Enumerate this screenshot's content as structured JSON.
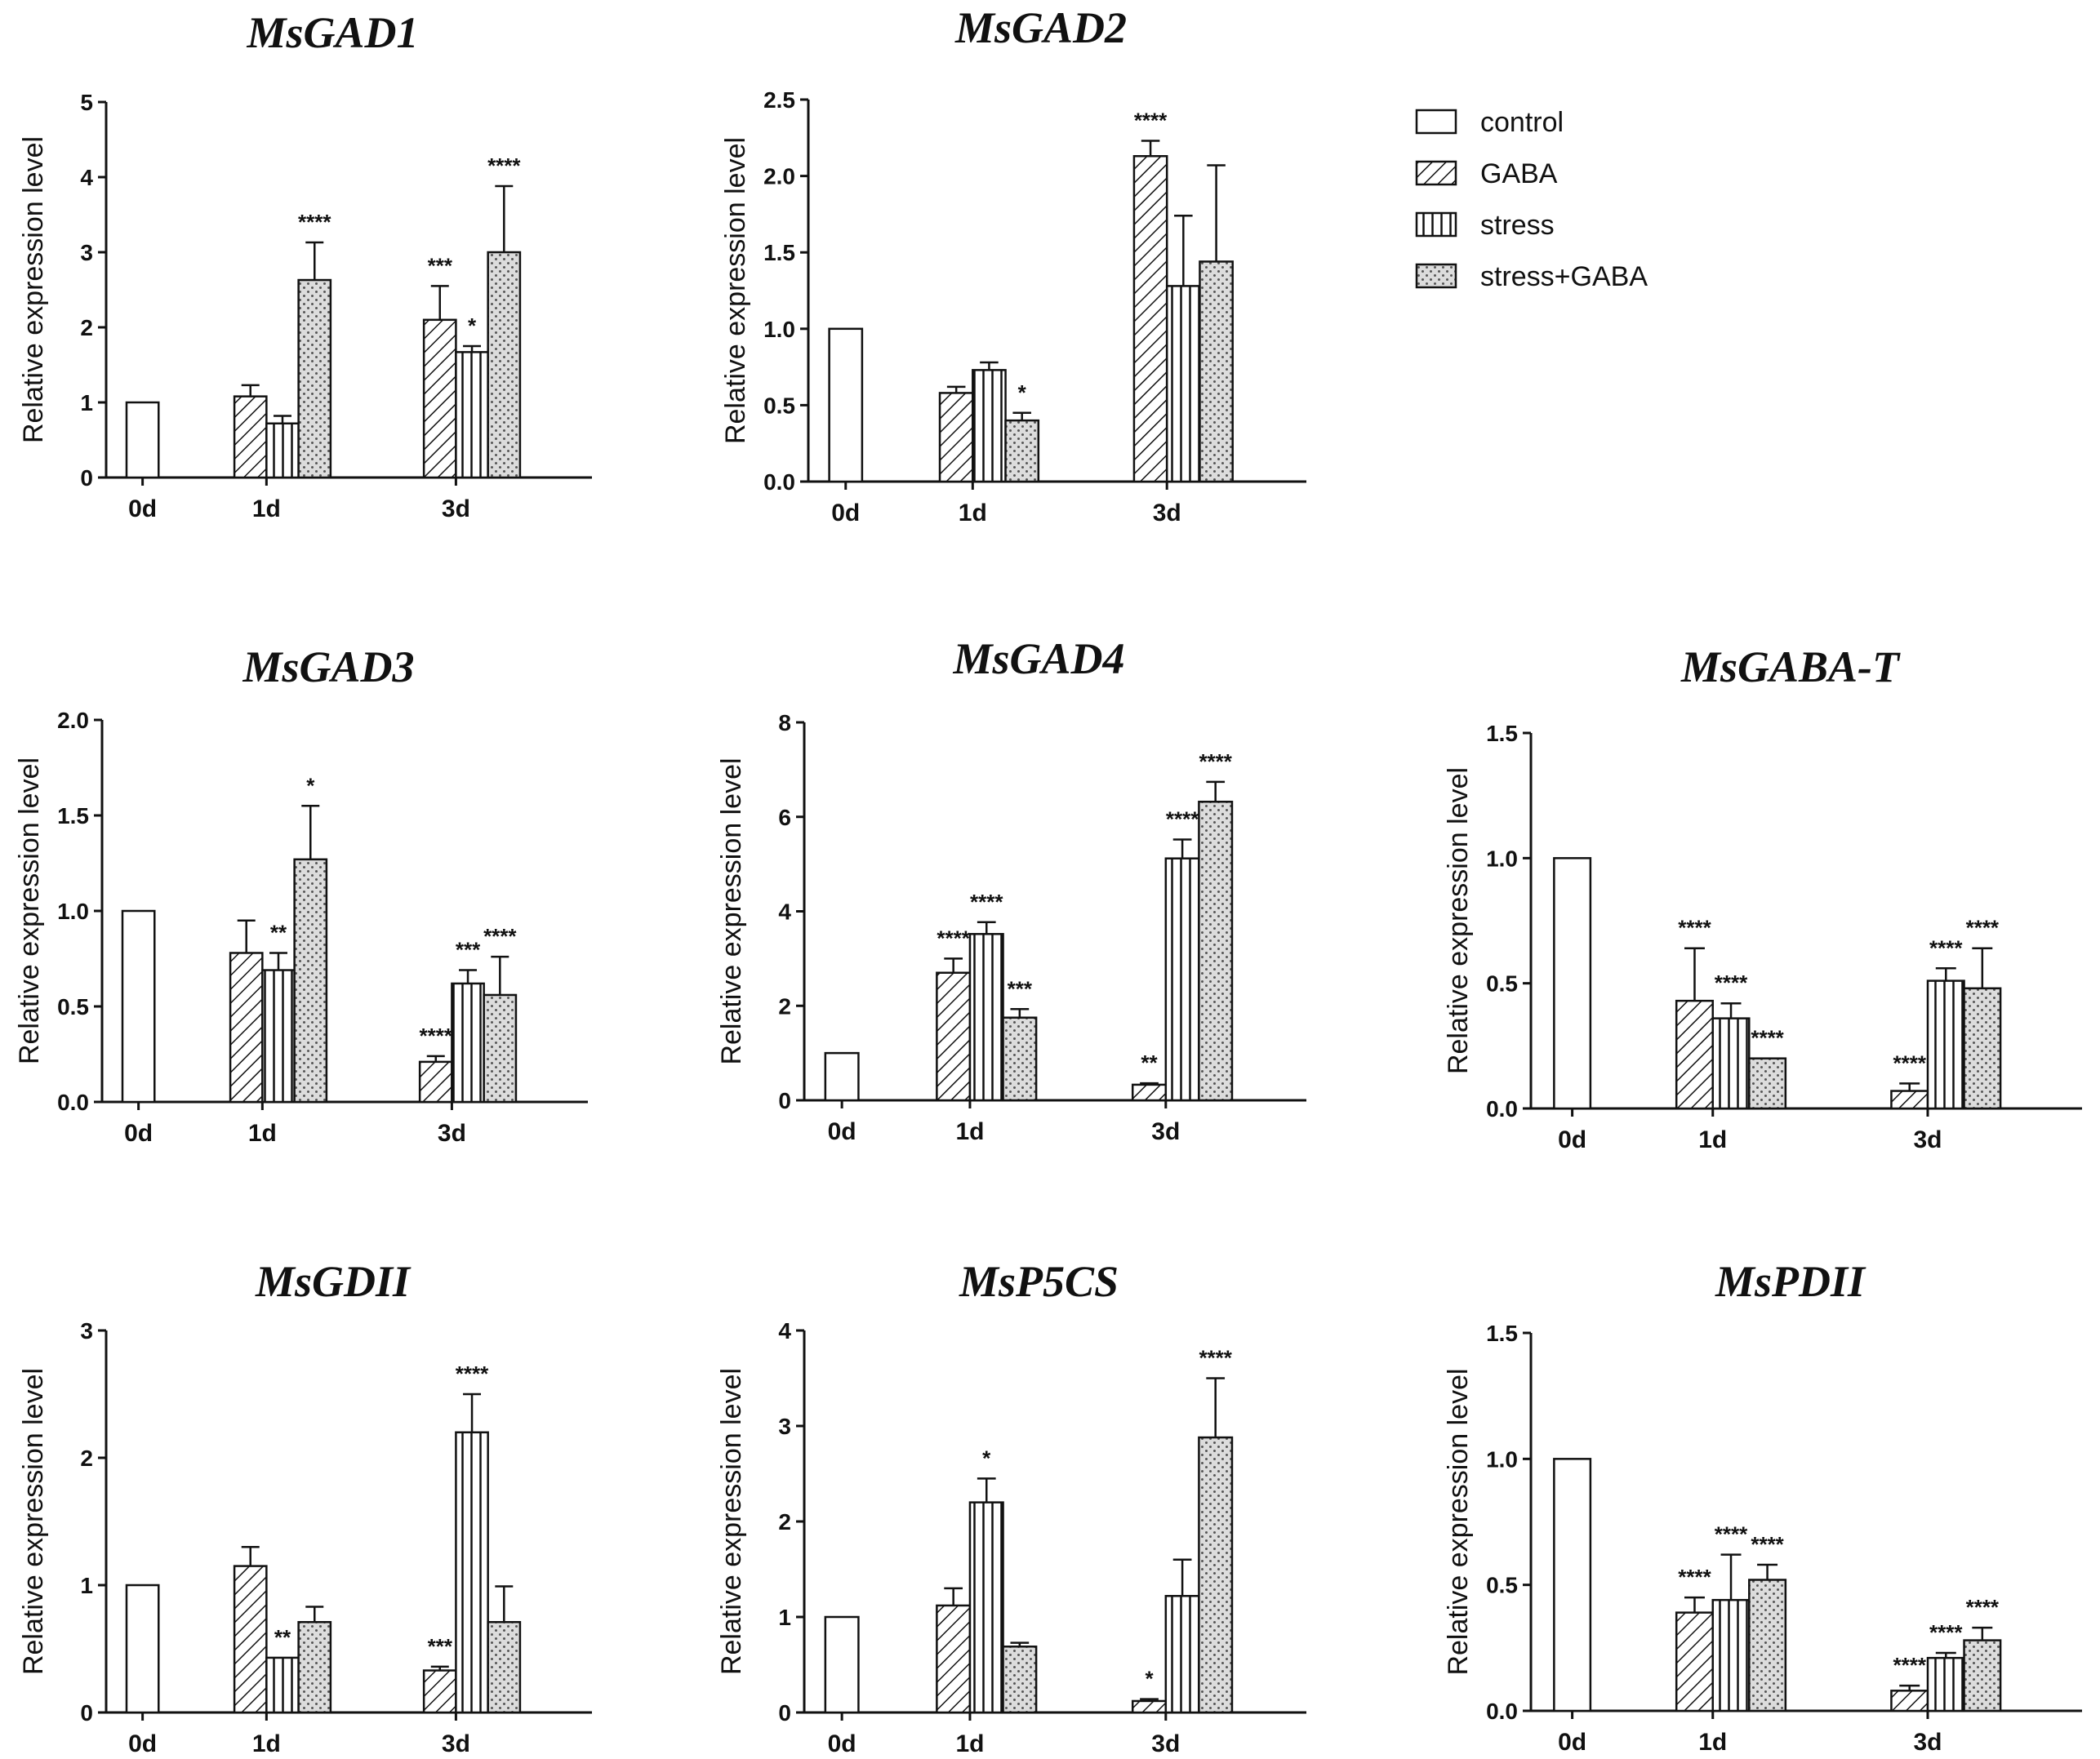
{
  "legend": {
    "items": [
      {
        "label": "control",
        "pattern": "control"
      },
      {
        "label": "GABA",
        "pattern": "gaba"
      },
      {
        "label": "stress",
        "pattern": "stress"
      },
      {
        "label": "stress+GABA",
        "pattern": "stressgaba"
      }
    ]
  },
  "chart_data": [
    {
      "type": "bar",
      "title": "MsGAD1",
      "ylabel": "Relative expression level",
      "ylim": [
        0,
        5
      ],
      "yticks": [
        "0",
        "1",
        "2",
        "3",
        "4",
        "5"
      ],
      "categories": [
        "0d",
        "1d",
        "3d"
      ],
      "series": [
        {
          "name": "control",
          "values": [
            1.0,
            null,
            null
          ],
          "errors": [
            0,
            null,
            null
          ],
          "sig": [
            "",
            "",
            ""
          ]
        },
        {
          "name": "GABA",
          "values": [
            null,
            1.08,
            2.1
          ],
          "errors": [
            null,
            0.15,
            0.45
          ],
          "sig": [
            "",
            "",
            "***"
          ]
        },
        {
          "name": "stress",
          "values": [
            null,
            0.72,
            1.67
          ],
          "errors": [
            null,
            0.1,
            0.08
          ],
          "sig": [
            "",
            "",
            "*"
          ]
        },
        {
          "name": "stress+GABA",
          "values": [
            null,
            2.63,
            3.0
          ],
          "errors": [
            null,
            0.5,
            0.88
          ],
          "sig": [
            "",
            "****",
            "****"
          ]
        }
      ]
    },
    {
      "type": "bar",
      "title": "MsGAD2",
      "ylabel": "Relative expression level",
      "ylim": [
        0,
        2.5
      ],
      "yticks": [
        "0.0",
        "0.5",
        "1.0",
        "1.5",
        "2.0",
        "2.5"
      ],
      "categories": [
        "0d",
        "1d",
        "3d"
      ],
      "series": [
        {
          "name": "control",
          "values": [
            1.0,
            null,
            null
          ],
          "errors": [
            0,
            null,
            null
          ],
          "sig": [
            "",
            "",
            ""
          ]
        },
        {
          "name": "GABA",
          "values": [
            null,
            0.58,
            2.13
          ],
          "errors": [
            null,
            0.04,
            0.1
          ],
          "sig": [
            "",
            "",
            "****"
          ]
        },
        {
          "name": "stress",
          "values": [
            null,
            0.73,
            1.28
          ],
          "errors": [
            null,
            0.05,
            0.46
          ],
          "sig": [
            "",
            "",
            ""
          ]
        },
        {
          "name": "stress+GABA",
          "values": [
            null,
            0.4,
            1.44
          ],
          "errors": [
            null,
            0.05,
            0.63
          ],
          "sig": [
            "",
            "*",
            ""
          ]
        }
      ]
    },
    {
      "type": "bar",
      "title": "MsGAD3",
      "ylabel": "Relative expression level",
      "ylim": [
        0,
        2.0
      ],
      "yticks": [
        "0.0",
        "0.5",
        "1.0",
        "1.5",
        "2.0"
      ],
      "categories": [
        "0d",
        "1d",
        "3d"
      ],
      "series": [
        {
          "name": "control",
          "values": [
            1.0,
            null,
            null
          ],
          "errors": [
            0,
            null,
            null
          ],
          "sig": [
            "",
            "",
            ""
          ]
        },
        {
          "name": "GABA",
          "values": [
            null,
            0.78,
            0.21
          ],
          "errors": [
            null,
            0.17,
            0.03
          ],
          "sig": [
            "",
            "",
            "****"
          ]
        },
        {
          "name": "stress",
          "values": [
            null,
            0.69,
            0.62
          ],
          "errors": [
            null,
            0.09,
            0.07
          ],
          "sig": [
            "",
            "**",
            "***"
          ]
        },
        {
          "name": "stress+GABA",
          "values": [
            null,
            1.27,
            0.56
          ],
          "errors": [
            null,
            0.28,
            0.2
          ],
          "sig": [
            "",
            "*",
            "****"
          ]
        }
      ]
    },
    {
      "type": "bar",
      "title": "MsGAD4",
      "ylabel": "Relative expression level",
      "ylim": [
        0,
        8
      ],
      "yticks": [
        "0",
        "2",
        "4",
        "6",
        "8"
      ],
      "categories": [
        "0d",
        "1d",
        "3d"
      ],
      "series": [
        {
          "name": "control",
          "values": [
            1.0,
            null,
            null
          ],
          "errors": [
            0,
            null,
            null
          ],
          "sig": [
            "",
            "",
            ""
          ]
        },
        {
          "name": "GABA",
          "values": [
            null,
            2.7,
            0.33
          ],
          "errors": [
            null,
            0.3,
            0.03
          ],
          "sig": [
            "",
            "****",
            "**"
          ]
        },
        {
          "name": "stress",
          "values": [
            null,
            3.52,
            5.12
          ],
          "errors": [
            null,
            0.25,
            0.4
          ],
          "sig": [
            "",
            "****",
            "****"
          ]
        },
        {
          "name": "stress+GABA",
          "values": [
            null,
            1.75,
            6.32
          ],
          "errors": [
            null,
            0.18,
            0.42
          ],
          "sig": [
            "",
            "***",
            "****"
          ]
        }
      ]
    },
    {
      "type": "bar",
      "title": "MsGABA-T",
      "ylabel": "Relative expression level",
      "ylim": [
        0,
        1.5
      ],
      "yticks": [
        "0.0",
        "0.5",
        "1.0",
        "1.5"
      ],
      "categories": [
        "0d",
        "1d",
        "3d"
      ],
      "series": [
        {
          "name": "control",
          "values": [
            1.0,
            null,
            null
          ],
          "errors": [
            0,
            null,
            null
          ],
          "sig": [
            "",
            "",
            ""
          ]
        },
        {
          "name": "GABA",
          "values": [
            null,
            0.43,
            0.07
          ],
          "errors": [
            null,
            0.21,
            0.03
          ],
          "sig": [
            "",
            "****",
            "****"
          ]
        },
        {
          "name": "stress",
          "values": [
            null,
            0.36,
            0.51
          ],
          "errors": [
            null,
            0.06,
            0.05
          ],
          "sig": [
            "",
            "****",
            "****"
          ]
        },
        {
          "name": "stress+GABA",
          "values": [
            null,
            0.2,
            0.48
          ],
          "errors": [
            null,
            0,
            0.16
          ],
          "sig": [
            "",
            "****",
            "****"
          ]
        }
      ]
    },
    {
      "type": "bar",
      "title": "MsGDII",
      "ylabel": "Relative expression level",
      "ylim": [
        0,
        3
      ],
      "yticks": [
        "0",
        "1",
        "2",
        "3"
      ],
      "categories": [
        "0d",
        "1d",
        "3d"
      ],
      "series": [
        {
          "name": "control",
          "values": [
            1.0,
            null,
            null
          ],
          "errors": [
            0,
            null,
            null
          ],
          "sig": [
            "",
            "",
            ""
          ]
        },
        {
          "name": "GABA",
          "values": [
            null,
            1.15,
            0.33
          ],
          "errors": [
            null,
            0.15,
            0.03
          ],
          "sig": [
            "",
            "",
            "***"
          ]
        },
        {
          "name": "stress",
          "values": [
            null,
            0.43,
            2.2
          ],
          "errors": [
            null,
            0,
            0.3
          ],
          "sig": [
            "",
            "**",
            "****"
          ]
        },
        {
          "name": "stress+GABA",
          "values": [
            null,
            0.71,
            0.71
          ],
          "errors": [
            null,
            0.12,
            0.28
          ],
          "sig": [
            "",
            "",
            ""
          ]
        }
      ]
    },
    {
      "type": "bar",
      "title": "MsP5CS",
      "ylabel": "Relative expression level",
      "ylim": [
        0,
        4
      ],
      "yticks": [
        "0",
        "1",
        "2",
        "3",
        "4"
      ],
      "categories": [
        "0d",
        "1d",
        "3d"
      ],
      "series": [
        {
          "name": "control",
          "values": [
            1.0,
            null,
            null
          ],
          "errors": [
            0,
            null,
            null
          ],
          "sig": [
            "",
            "",
            ""
          ]
        },
        {
          "name": "GABA",
          "values": [
            null,
            1.12,
            0.12
          ],
          "errors": [
            null,
            0.18,
            0.02
          ],
          "sig": [
            "",
            "",
            "*"
          ]
        },
        {
          "name": "stress",
          "values": [
            null,
            2.2,
            1.22
          ],
          "errors": [
            null,
            0.25,
            0.38
          ],
          "sig": [
            "",
            "*",
            ""
          ]
        },
        {
          "name": "stress+GABA",
          "values": [
            null,
            0.69,
            2.88
          ],
          "errors": [
            null,
            0.04,
            0.62
          ],
          "sig": [
            "",
            "",
            "****"
          ]
        }
      ]
    },
    {
      "type": "bar",
      "title": "MsPDII",
      "ylabel": "Relative expression level",
      "ylim": [
        0,
        1.5
      ],
      "yticks": [
        "0.0",
        "0.5",
        "1.0",
        "1.5"
      ],
      "categories": [
        "0d",
        "1d",
        "3d"
      ],
      "series": [
        {
          "name": "control",
          "values": [
            1.0,
            null,
            null
          ],
          "errors": [
            0,
            null,
            null
          ],
          "sig": [
            "",
            "",
            ""
          ]
        },
        {
          "name": "GABA",
          "values": [
            null,
            0.39,
            0.08
          ],
          "errors": [
            null,
            0.06,
            0.02
          ],
          "sig": [
            "",
            "****",
            "****"
          ]
        },
        {
          "name": "stress",
          "values": [
            null,
            0.44,
            0.21
          ],
          "errors": [
            null,
            0.18,
            0.02
          ],
          "sig": [
            "",
            "****",
            "****"
          ]
        },
        {
          "name": "stress+GABA",
          "values": [
            null,
            0.52,
            0.28
          ],
          "errors": [
            null,
            0.06,
            0.05
          ],
          "sig": [
            "",
            "****",
            "****"
          ]
        }
      ]
    }
  ]
}
